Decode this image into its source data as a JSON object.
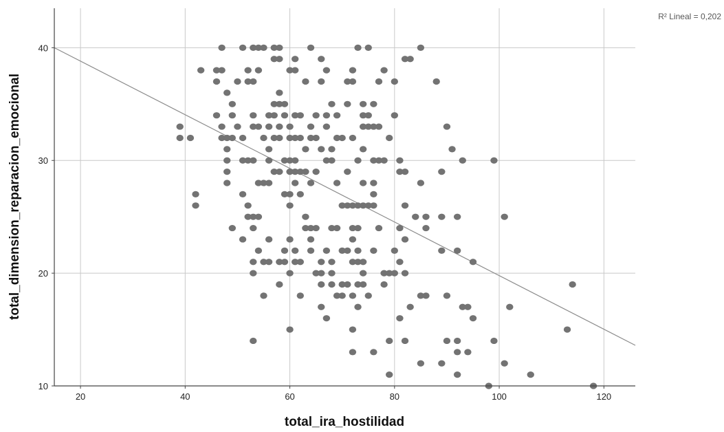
{
  "chart_data": {
    "type": "scatter",
    "title": "",
    "xlabel": "total_ira_hostilidad",
    "ylabel": "total_dimension_reparacion_emocional",
    "xlim": [
      15,
      126
    ],
    "ylim": [
      10,
      43.5
    ],
    "xticks": [
      20,
      40,
      60,
      80,
      100,
      120
    ],
    "yticks": [
      10,
      20,
      30,
      40
    ],
    "grid": true,
    "point_color": "#737373",
    "line_color": "#8c8c8c",
    "grid_color": "#c8c8c8",
    "fit_line": {
      "r2_label": "R² Lineal = 0,202",
      "x": [
        15,
        126
      ],
      "y": [
        40.0,
        13.6
      ]
    },
    "points": [
      [
        39,
        33
      ],
      [
        39,
        32
      ],
      [
        41,
        32
      ],
      [
        42,
        27
      ],
      [
        42,
        26
      ],
      [
        43,
        38
      ],
      [
        46,
        38
      ],
      [
        46,
        37
      ],
      [
        46,
        34
      ],
      [
        47,
        40
      ],
      [
        47,
        38
      ],
      [
        47,
        33
      ],
      [
        47,
        32
      ],
      [
        48,
        32
      ],
      [
        48,
        31
      ],
      [
        48,
        30
      ],
      [
        48,
        29
      ],
      [
        48,
        28
      ],
      [
        48,
        36
      ],
      [
        49,
        35
      ],
      [
        49,
        34
      ],
      [
        49,
        32
      ],
      [
        49,
        24
      ],
      [
        50,
        37
      ],
      [
        50,
        33
      ],
      [
        51,
        40
      ],
      [
        51,
        32
      ],
      [
        51,
        30
      ],
      [
        51,
        27
      ],
      [
        51,
        23
      ],
      [
        52,
        38
      ],
      [
        52,
        37
      ],
      [
        52,
        30
      ],
      [
        52,
        26
      ],
      [
        52,
        25
      ],
      [
        53,
        40
      ],
      [
        53,
        37
      ],
      [
        53,
        34
      ],
      [
        53,
        33
      ],
      [
        53,
        30
      ],
      [
        53,
        25
      ],
      [
        53,
        24
      ],
      [
        53,
        21
      ],
      [
        53,
        20
      ],
      [
        53,
        14
      ],
      [
        54,
        40
      ],
      [
        54,
        38
      ],
      [
        54,
        33
      ],
      [
        54,
        28
      ],
      [
        54,
        25
      ],
      [
        54,
        22
      ],
      [
        55,
        40
      ],
      [
        55,
        32
      ],
      [
        55,
        28
      ],
      [
        55,
        21
      ],
      [
        55,
        18
      ],
      [
        56,
        34
      ],
      [
        56,
        33
      ],
      [
        56,
        31
      ],
      [
        56,
        30
      ],
      [
        56,
        28
      ],
      [
        56,
        23
      ],
      [
        56,
        21
      ],
      [
        57,
        40
      ],
      [
        57,
        39
      ],
      [
        57,
        35
      ],
      [
        57,
        34
      ],
      [
        57,
        32
      ],
      [
        57,
        29
      ],
      [
        58,
        40
      ],
      [
        58,
        39
      ],
      [
        58,
        36
      ],
      [
        58,
        35
      ],
      [
        58,
        33
      ],
      [
        58,
        32
      ],
      [
        58,
        29
      ],
      [
        58,
        21
      ],
      [
        58,
        19
      ],
      [
        59,
        35
      ],
      [
        59,
        34
      ],
      [
        59,
        30
      ],
      [
        59,
        27
      ],
      [
        59,
        22
      ],
      [
        59,
        21
      ],
      [
        60,
        38
      ],
      [
        60,
        33
      ],
      [
        60,
        32
      ],
      [
        60,
        30
      ],
      [
        60,
        29
      ],
      [
        60,
        27
      ],
      [
        60,
        26
      ],
      [
        60,
        23
      ],
      [
        60,
        20
      ],
      [
        60,
        15
      ],
      [
        61,
        39
      ],
      [
        61,
        38
      ],
      [
        61,
        34
      ],
      [
        61,
        32
      ],
      [
        61,
        30
      ],
      [
        61,
        29
      ],
      [
        61,
        28
      ],
      [
        61,
        22
      ],
      [
        61,
        21
      ],
      [
        62,
        34
      ],
      [
        62,
        32
      ],
      [
        62,
        29
      ],
      [
        62,
        27
      ],
      [
        62,
        21
      ],
      [
        62,
        18
      ],
      [
        63,
        37
      ],
      [
        63,
        31
      ],
      [
        63,
        29
      ],
      [
        63,
        25
      ],
      [
        63,
        24
      ],
      [
        64,
        40
      ],
      [
        64,
        33
      ],
      [
        64,
        32
      ],
      [
        64,
        28
      ],
      [
        64,
        24
      ],
      [
        64,
        23
      ],
      [
        64,
        22
      ],
      [
        65,
        34
      ],
      [
        65,
        32
      ],
      [
        65,
        29
      ],
      [
        65,
        24
      ],
      [
        65,
        20
      ],
      [
        66,
        39
      ],
      [
        66,
        37
      ],
      [
        66,
        31
      ],
      [
        66,
        21
      ],
      [
        66,
        20
      ],
      [
        66,
        19
      ],
      [
        66,
        17
      ],
      [
        67,
        38
      ],
      [
        67,
        34
      ],
      [
        67,
        33
      ],
      [
        67,
        30
      ],
      [
        67,
        22
      ],
      [
        67,
        16
      ],
      [
        68,
        35
      ],
      [
        68,
        31
      ],
      [
        68,
        30
      ],
      [
        68,
        24
      ],
      [
        68,
        21
      ],
      [
        68,
        20
      ],
      [
        68,
        19
      ],
      [
        69,
        34
      ],
      [
        69,
        32
      ],
      [
        69,
        28
      ],
      [
        69,
        24
      ],
      [
        69,
        18
      ],
      [
        70,
        32
      ],
      [
        70,
        26
      ],
      [
        70,
        22
      ],
      [
        70,
        19
      ],
      [
        70,
        18
      ],
      [
        71,
        37
      ],
      [
        71,
        35
      ],
      [
        71,
        29
      ],
      [
        71,
        26
      ],
      [
        71,
        22
      ],
      [
        71,
        19
      ],
      [
        72,
        38
      ],
      [
        72,
        37
      ],
      [
        72,
        32
      ],
      [
        72,
        26
      ],
      [
        72,
        24
      ],
      [
        72,
        23
      ],
      [
        72,
        21
      ],
      [
        72,
        18
      ],
      [
        72,
        15
      ],
      [
        72,
        13
      ],
      [
        73,
        40
      ],
      [
        73,
        30
      ],
      [
        73,
        26
      ],
      [
        73,
        24
      ],
      [
        73,
        22
      ],
      [
        73,
        21
      ],
      [
        73,
        19
      ],
      [
        73,
        17
      ],
      [
        74,
        35
      ],
      [
        74,
        34
      ],
      [
        74,
        33
      ],
      [
        74,
        31
      ],
      [
        74,
        28
      ],
      [
        74,
        26
      ],
      [
        74,
        21
      ],
      [
        74,
        20
      ],
      [
        74,
        19
      ],
      [
        75,
        40
      ],
      [
        75,
        34
      ],
      [
        75,
        33
      ],
      [
        75,
        26
      ],
      [
        75,
        18
      ],
      [
        76,
        35
      ],
      [
        76,
        33
      ],
      [
        76,
        30
      ],
      [
        76,
        28
      ],
      [
        76,
        27
      ],
      [
        76,
        26
      ],
      [
        76,
        22
      ],
      [
        76,
        13
      ],
      [
        77,
        37
      ],
      [
        77,
        33
      ],
      [
        77,
        30
      ],
      [
        77,
        24
      ],
      [
        78,
        38
      ],
      [
        78,
        30
      ],
      [
        78,
        20
      ],
      [
        78,
        19
      ],
      [
        79,
        32
      ],
      [
        79,
        20
      ],
      [
        79,
        14
      ],
      [
        79,
        11
      ],
      [
        80,
        37
      ],
      [
        80,
        34
      ],
      [
        80,
        22
      ],
      [
        80,
        20
      ],
      [
        81,
        30
      ],
      [
        81,
        29
      ],
      [
        81,
        24
      ],
      [
        81,
        21
      ],
      [
        81,
        16
      ],
      [
        82,
        39
      ],
      [
        82,
        29
      ],
      [
        82,
        26
      ],
      [
        82,
        23
      ],
      [
        82,
        20
      ],
      [
        82,
        14
      ],
      [
        83,
        39
      ],
      [
        83,
        17
      ],
      [
        84,
        25
      ],
      [
        85,
        40
      ],
      [
        85,
        28
      ],
      [
        85,
        18
      ],
      [
        85,
        12
      ],
      [
        86,
        25
      ],
      [
        86,
        24
      ],
      [
        86,
        18
      ],
      [
        88,
        37
      ],
      [
        89,
        25
      ],
      [
        89,
        22
      ],
      [
        89,
        12
      ],
      [
        89,
        29
      ],
      [
        90,
        33
      ],
      [
        90,
        18
      ],
      [
        90,
        14
      ],
      [
        91,
        31
      ],
      [
        92,
        25
      ],
      [
        92,
        22
      ],
      [
        92,
        14
      ],
      [
        92,
        13
      ],
      [
        92,
        11
      ],
      [
        93,
        30
      ],
      [
        93,
        17
      ],
      [
        94,
        17
      ],
      [
        94,
        13
      ],
      [
        95,
        21
      ],
      [
        95,
        16
      ],
      [
        98,
        10
      ],
      [
        99,
        30
      ],
      [
        99,
        14
      ],
      [
        101,
        25
      ],
      [
        101,
        12
      ],
      [
        102,
        17
      ],
      [
        106,
        11
      ],
      [
        113,
        15
      ],
      [
        114,
        19
      ],
      [
        118,
        10
      ]
    ]
  }
}
